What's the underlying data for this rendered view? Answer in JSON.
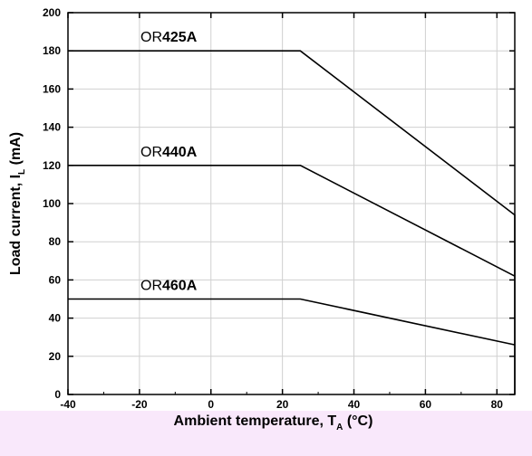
{
  "chart_data": {
    "type": "line",
    "xlabel": "Ambient temperature, T_A (°C)",
    "xlabel_main": "Ambient temperature, T",
    "xlabel_sub": "A",
    "xlabel_tail": " (°C)",
    "ylabel": "Load current, I_L (mA)",
    "ylabel_main": "Load current, I",
    "ylabel_sub": "L",
    "ylabel_tail": " (mA)",
    "xlim": [
      -40,
      85
    ],
    "ylim": [
      0,
      200
    ],
    "xticks": [
      -40,
      -20,
      0,
      20,
      40,
      60,
      80
    ],
    "yticks": [
      0,
      20,
      40,
      60,
      80,
      100,
      120,
      140,
      160,
      180,
      200
    ],
    "grid": true,
    "series": [
      {
        "name": "OR425A",
        "name_prefix": "OR",
        "name_bold": "425A",
        "x": [
          -40,
          25,
          85,
          85
        ],
        "y": [
          180,
          180,
          94,
          0
        ]
      },
      {
        "name": "OR440A",
        "name_prefix": "OR",
        "name_bold": "440A",
        "x": [
          -40,
          25,
          85
        ],
        "y": [
          120,
          120,
          62
        ]
      },
      {
        "name": "OR460A",
        "name_prefix": "OR",
        "name_bold": "460A",
        "x": [
          -40,
          25,
          85
        ],
        "y": [
          50,
          50,
          26
        ]
      }
    ],
    "colors": {
      "line": "#000000",
      "grid": "#d0d0d0",
      "footer_band": "#f9e8fb"
    }
  }
}
